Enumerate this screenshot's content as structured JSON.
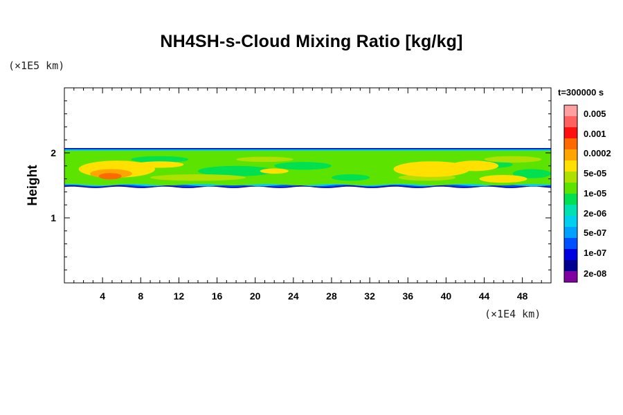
{
  "chart_data": {
    "type": "heatmap",
    "title": "NH4SH-s-Cloud Mixing Ratio [kg/kg]",
    "xlabel": "",
    "ylabel": "Height",
    "x_unit": "(×1E4 km)",
    "y_unit": "(×1E5 km)",
    "xlim": [
      0,
      51
    ],
    "ylim": [
      0,
      3
    ],
    "x_ticks": [
      4,
      8,
      12,
      16,
      20,
      24,
      28,
      32,
      36,
      40,
      44,
      48
    ],
    "y_ticks": [
      1,
      2
    ],
    "time_label": "t=300000 s",
    "colorbar": {
      "labels": [
        "0.005",
        "0.001",
        "0.0002",
        "5e-05",
        "1e-05",
        "2e-06",
        "5e-07",
        "1e-07",
        "2e-08"
      ],
      "colors": [
        "#ffa0a0",
        "#ff6060",
        "#ff1010",
        "#ff6a00",
        "#ffa500",
        "#ffe000",
        "#b0e000",
        "#5ce400",
        "#00e050",
        "#00e0b0",
        "#00d0f0",
        "#00a0ff",
        "#0050ff",
        "#0000e0",
        "#000090",
        "#8000a0"
      ]
    },
    "cloud_layer": {
      "bottom": 1.48,
      "top": 2.07
    },
    "regions": [
      {
        "level": "1e-05 to 5e-05",
        "x": [
          0,
          51
        ],
        "y": [
          1.48,
          2.07
        ]
      },
      {
        "level": "5e-05 to 0.0002",
        "x": [
          2,
          9
        ],
        "y": [
          1.55,
          1.95
        ]
      },
      {
        "level": "5e-05 to 0.0002",
        "x": [
          34,
          46
        ],
        "y": [
          1.55,
          1.95
        ]
      },
      {
        "level": "0.0002 to 0.001",
        "x": [
          3,
          7
        ],
        "y": [
          1.55,
          1.72
        ]
      },
      {
        "level": "0.001 to 0.005",
        "x": [
          4.5,
          5.2
        ],
        "y": [
          1.6,
          1.68
        ]
      }
    ]
  }
}
